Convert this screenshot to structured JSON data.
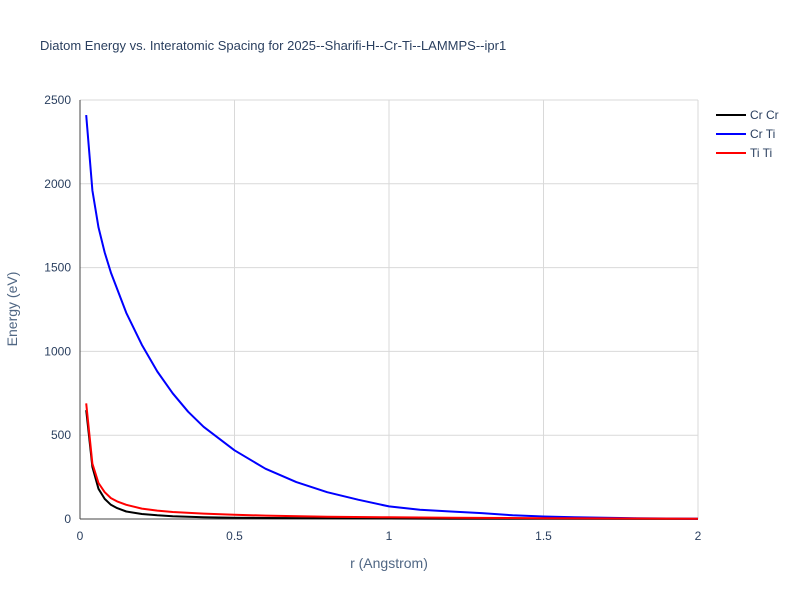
{
  "chart_data": {
    "type": "line",
    "title": "Diatom Energy vs. Interatomic Spacing for 2025--Sharifi-H--Cr-Ti--LAMMPS--ipr1",
    "xlabel": "r (Angstrom)",
    "ylabel": "Energy (eV)",
    "xlim": [
      0,
      2
    ],
    "ylim": [
      0,
      2500
    ],
    "xticks": [
      0,
      0.5,
      1,
      1.5,
      2
    ],
    "xtick_labels": [
      "0",
      "0.5",
      "1",
      "1.5",
      "2"
    ],
    "yticks": [
      0,
      500,
      1000,
      1500,
      2000,
      2500
    ],
    "ytick_labels": [
      "0",
      "500",
      "1000",
      "1500",
      "2000",
      "2500"
    ],
    "grid": true,
    "legend_position": "top-right",
    "series": [
      {
        "name": "Cr Cr",
        "color": "#000000",
        "x": [
          0.02,
          0.04,
          0.06,
          0.08,
          0.1,
          0.12,
          0.15,
          0.2,
          0.25,
          0.3,
          0.4,
          0.5,
          0.6,
          0.8,
          1.0,
          1.2,
          1.5,
          1.8,
          2.0
        ],
        "y": [
          650,
          310,
          180,
          120,
          85,
          65,
          45,
          30,
          22,
          17,
          11,
          8,
          6,
          4,
          3,
          2,
          1,
          0.5,
          0.3
        ]
      },
      {
        "name": "Cr Ti",
        "color": "#0000ff",
        "x": [
          0.02,
          0.04,
          0.06,
          0.08,
          0.1,
          0.15,
          0.2,
          0.25,
          0.3,
          0.35,
          0.4,
          0.5,
          0.6,
          0.7,
          0.8,
          0.9,
          1.0,
          1.1,
          1.2,
          1.3,
          1.4,
          1.5,
          1.6,
          1.8,
          2.0
        ],
        "y": [
          2410,
          1960,
          1740,
          1590,
          1470,
          1230,
          1040,
          880,
          750,
          640,
          550,
          410,
          300,
          220,
          160,
          115,
          75,
          55,
          45,
          35,
          22,
          15,
          10,
          5,
          2
        ]
      },
      {
        "name": "Ti Ti",
        "color": "#ff0000",
        "x": [
          0.02,
          0.04,
          0.06,
          0.08,
          0.1,
          0.12,
          0.15,
          0.2,
          0.25,
          0.3,
          0.4,
          0.5,
          0.6,
          0.8,
          1.0,
          1.2,
          1.5,
          1.8,
          2.0
        ],
        "y": [
          690,
          330,
          215,
          160,
          125,
          105,
          85,
          62,
          50,
          42,
          32,
          25,
          20,
          14,
          10,
          8,
          5,
          3,
          2
        ]
      }
    ]
  }
}
